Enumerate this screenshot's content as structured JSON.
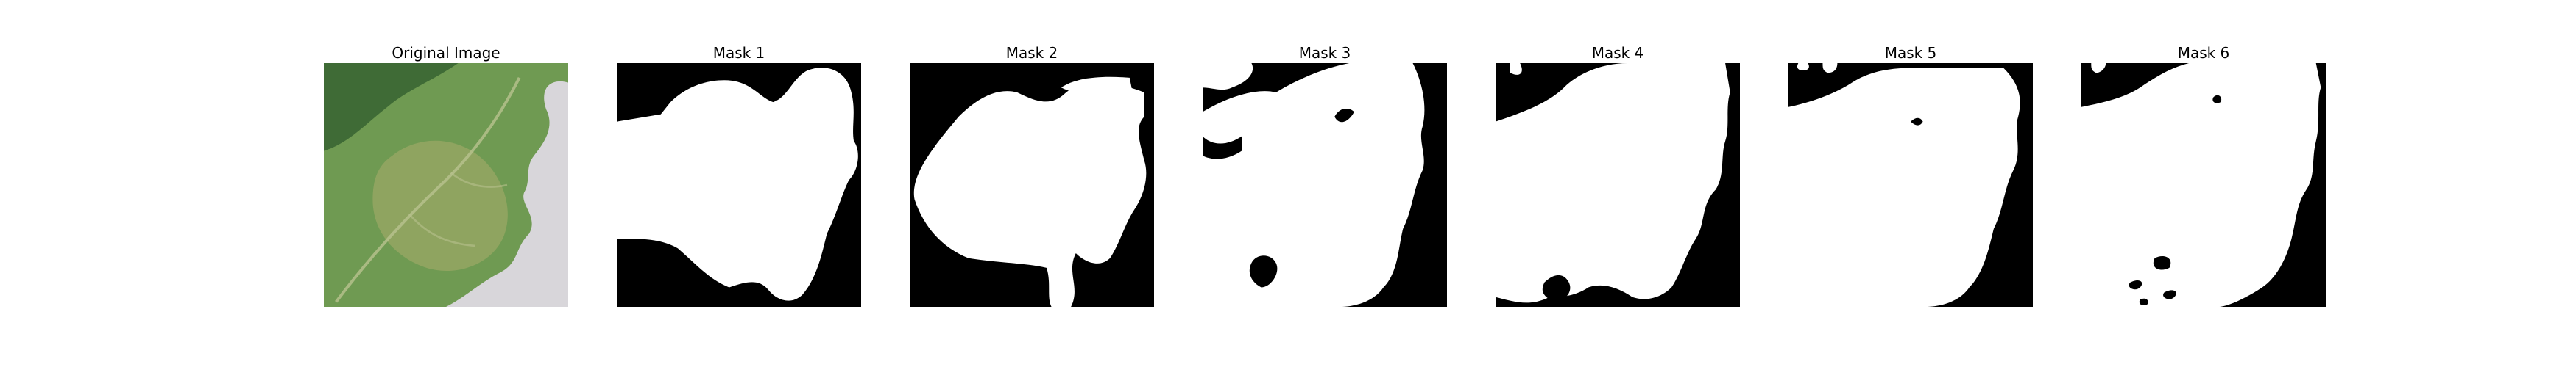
{
  "panels": [
    {
      "title": "Original Image",
      "kind": "photo",
      "subject": "leaf-with-lesion"
    },
    {
      "title": "Mask 1",
      "kind": "mask",
      "foreground": "#ffffff",
      "background": "#000000"
    },
    {
      "title": "Mask 2",
      "kind": "mask",
      "foreground": "#ffffff",
      "background": "#000000"
    },
    {
      "title": "Mask 3",
      "kind": "mask",
      "foreground": "#ffffff",
      "background": "#000000"
    },
    {
      "title": "Mask 4",
      "kind": "mask",
      "foreground": "#ffffff",
      "background": "#000000"
    },
    {
      "title": "Mask 5",
      "kind": "mask",
      "foreground": "#ffffff",
      "background": "#000000"
    },
    {
      "title": "Mask 6",
      "kind": "mask",
      "foreground": "#ffffff",
      "background": "#000000"
    }
  ],
  "colors": {
    "leaf_green": "#6f9a52",
    "leaf_dark": "#3f6b36",
    "background_gray": "#d8d6da",
    "lesion_yellow": "#a9ad6b"
  }
}
